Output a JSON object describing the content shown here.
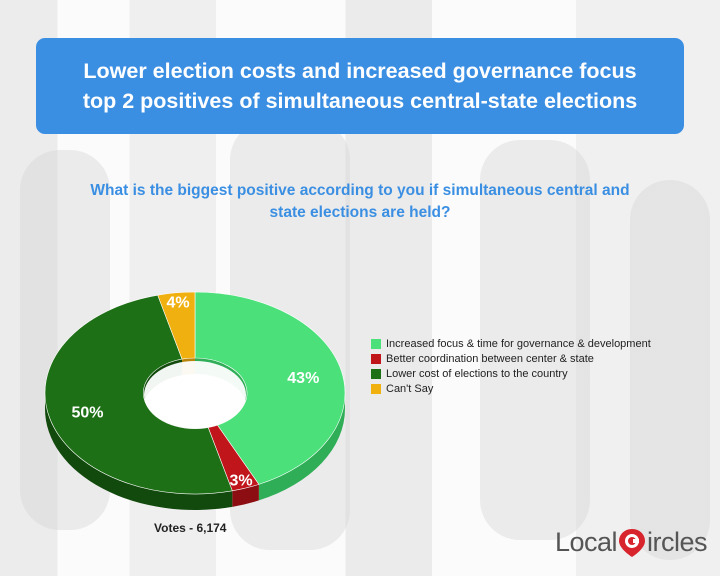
{
  "title": {
    "line1": "Lower election costs and increased governance focus",
    "line2": "top 2 positives of simultaneous central-state elections"
  },
  "question": {
    "line1": "What is the biggest positive according to you if simultaneous central and",
    "line2": "state elections are held?"
  },
  "votes": "Votes - 6,174",
  "logo": {
    "part1": "Local",
    "part2": "ircles",
    "mark_icon": "map-pin-c-icon",
    "mark_color": "#d8242c"
  },
  "chart_data": {
    "type": "pie",
    "variant": "3d-donut",
    "categories": [
      "Increased focus & time for governance & development",
      "Better coordination between center & state",
      "Lower cost of elections to the country",
      "Can't Say"
    ],
    "values": [
      43,
      3,
      50,
      4
    ],
    "data_labels": [
      "43%",
      "3%",
      "50%",
      "4%"
    ],
    "colors": [
      "#4be07a",
      "#c0151b",
      "#1e7016",
      "#f0b010"
    ],
    "side_colors": [
      "#2fae57",
      "#8c0e12",
      "#124a0d",
      "#b8850a"
    ],
    "legend_position": "right"
  }
}
